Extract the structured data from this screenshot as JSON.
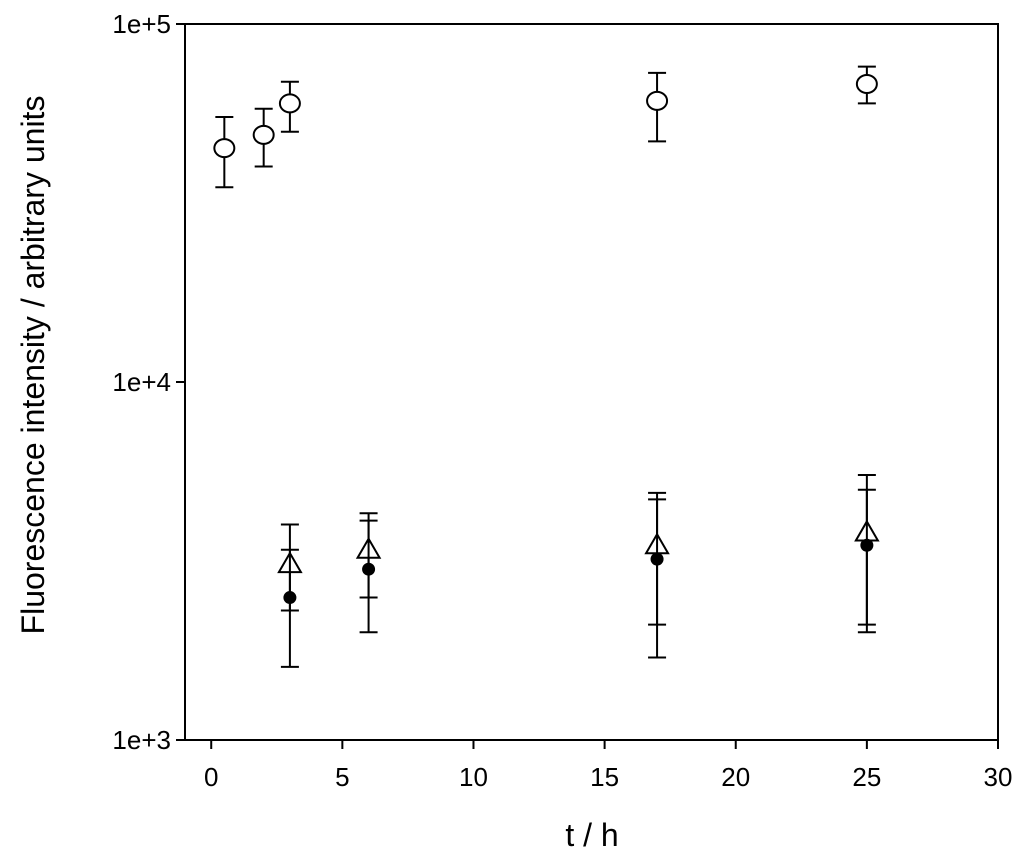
{
  "chart_data": {
    "type": "scatter",
    "title": "",
    "xlabel": "t / h",
    "ylabel": "Fluorescence intensity / arbitrary units",
    "xlim": [
      -1,
      30
    ],
    "ylim": [
      1000,
      100000
    ],
    "yscale": "log",
    "grid": false,
    "x_ticks": [
      0,
      5,
      10,
      15,
      20,
      25,
      30
    ],
    "x_tick_labels": [
      "0",
      "5",
      "10",
      "15",
      "20",
      "25",
      "30"
    ],
    "y_ticks": [
      1000,
      10000,
      100000
    ],
    "y_tick_labels": [
      "1e+3",
      "1e+4",
      "1e+5"
    ],
    "series": [
      {
        "marker": "open-circle",
        "color": "#000000",
        "points": [
          {
            "x": 0.5,
            "y": 45000,
            "err_low": 35000,
            "err_high": 55000
          },
          {
            "x": 2,
            "y": 49000,
            "err_low": 40000,
            "err_high": 58000
          },
          {
            "x": 3,
            "y": 60000,
            "err_low": 50000,
            "err_high": 69000
          },
          {
            "x": 17,
            "y": 61000,
            "err_low": 47000,
            "err_high": 73000
          },
          {
            "x": 25,
            "y": 68000,
            "err_low": 60000,
            "err_high": 76000
          }
        ]
      },
      {
        "marker": "open-triangle",
        "color": "#000000",
        "points": [
          {
            "x": 3,
            "y": 3100,
            "err_low": 2300,
            "err_high": 4000
          },
          {
            "x": 6,
            "y": 3400,
            "err_low": 2500,
            "err_high": 4300
          },
          {
            "x": 17,
            "y": 3500,
            "err_low": 2100,
            "err_high": 4900
          },
          {
            "x": 25,
            "y": 3800,
            "err_low": 2100,
            "err_high": 5500
          }
        ]
      },
      {
        "marker": "filled-circle",
        "color": "#000000",
        "points": [
          {
            "x": 3,
            "y": 2500,
            "err_low": 1600,
            "err_high": 3400
          },
          {
            "x": 6,
            "y": 3000,
            "err_low": 2000,
            "err_high": 4100
          },
          {
            "x": 17,
            "y": 3200,
            "err_low": 1700,
            "err_high": 4700
          },
          {
            "x": 25,
            "y": 3500,
            "err_low": 2000,
            "err_high": 5000
          }
        ]
      }
    ]
  }
}
